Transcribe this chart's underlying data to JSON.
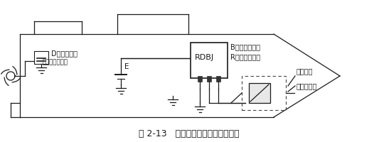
{
  "title": "图 2-13   船体外加电流阴极保护示意",
  "title_fontsize": 9,
  "bg_color": "#ffffff",
  "line_color": "#1a1a1a",
  "label_D": "D（舵接地）",
  "label_push": "（推进器接地）",
  "label_E": "E",
  "label_RDBJ": "RDBJ",
  "label_B": "B（恒电位仪）",
  "label_R": "R（参比电极）",
  "label_aux": "辅助电极",
  "label_anode": "阳极屏蔽层"
}
